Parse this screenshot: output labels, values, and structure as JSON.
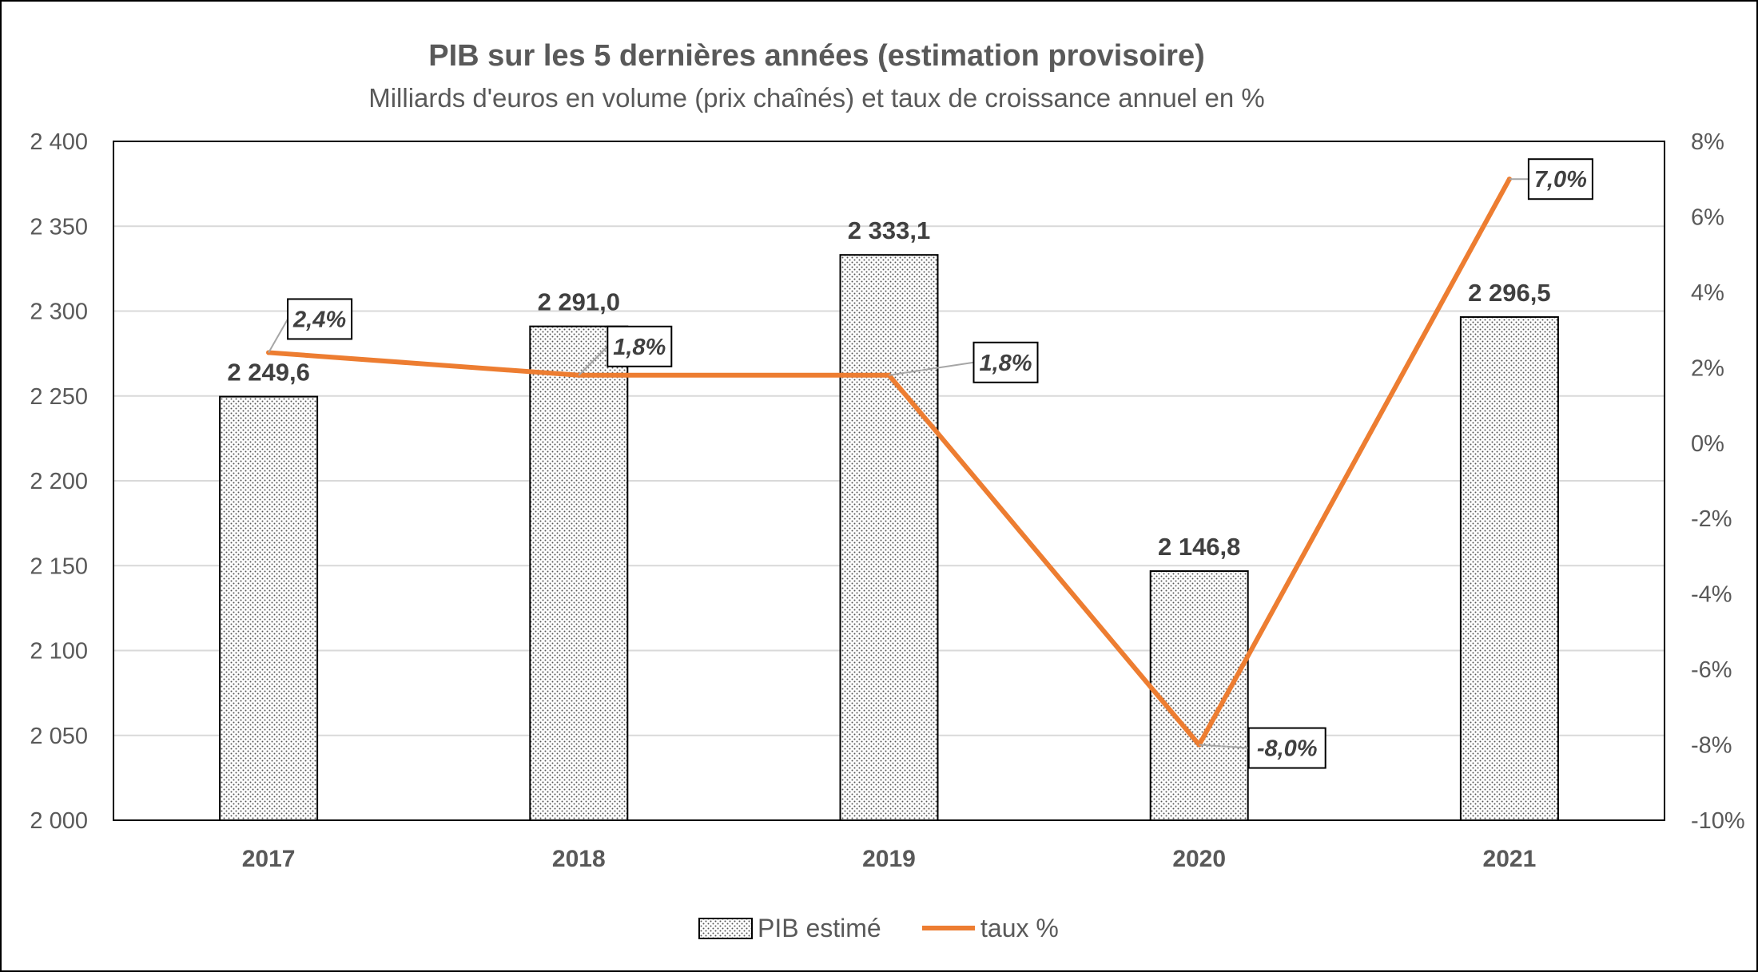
{
  "chart_data": {
    "type": "bar",
    "title": "PIB sur les 5 dernières années (estimation provisoire)",
    "subtitle": "Milliards d'euros en volume (prix chaînés) et taux de croissance annuel en %",
    "categories": [
      "2017",
      "2018",
      "2019",
      "2020",
      "2021"
    ],
    "series": [
      {
        "name": "PIB estimé",
        "type": "bar",
        "axis": "left",
        "values": [
          2249.6,
          2291.0,
          2333.1,
          2146.8,
          2296.5
        ],
        "labels": [
          "2 249,6",
          "2 291,0",
          "2 333,1",
          "2 146,8",
          "2 296,5"
        ]
      },
      {
        "name": "taux %",
        "type": "line",
        "axis": "right",
        "color": "#ED7D31",
        "values": [
          2.4,
          1.8,
          1.8,
          -8.0,
          7.0
        ],
        "labels": [
          "2,4%",
          "1,8%",
          "1,8%",
          "-8,0%",
          "7,0%"
        ]
      }
    ],
    "y_left": {
      "range": [
        2000,
        2400
      ],
      "ticks": [
        2000,
        2050,
        2100,
        2150,
        2200,
        2250,
        2300,
        2350,
        2400
      ],
      "tick_labels": [
        "2 000",
        "2 050",
        "2 100",
        "2 150",
        "2 200",
        "2 250",
        "2 300",
        "2 350",
        "2 400"
      ]
    },
    "y_right": {
      "range": [
        -10,
        8
      ],
      "ticks": [
        -10,
        -8,
        -6,
        -4,
        -2,
        0,
        2,
        4,
        6,
        8
      ],
      "tick_labels": [
        "-10%",
        "-8%",
        "-6%",
        "-4%",
        "-2%",
        "0%",
        "2%",
        "4%",
        "6%",
        "8%"
      ]
    },
    "grid": true,
    "legend_position": "bottom",
    "colors": {
      "line": "#ED7D31",
      "bar_edge": "#000000",
      "grid": "#D9D9D9",
      "text": "#595959"
    }
  }
}
